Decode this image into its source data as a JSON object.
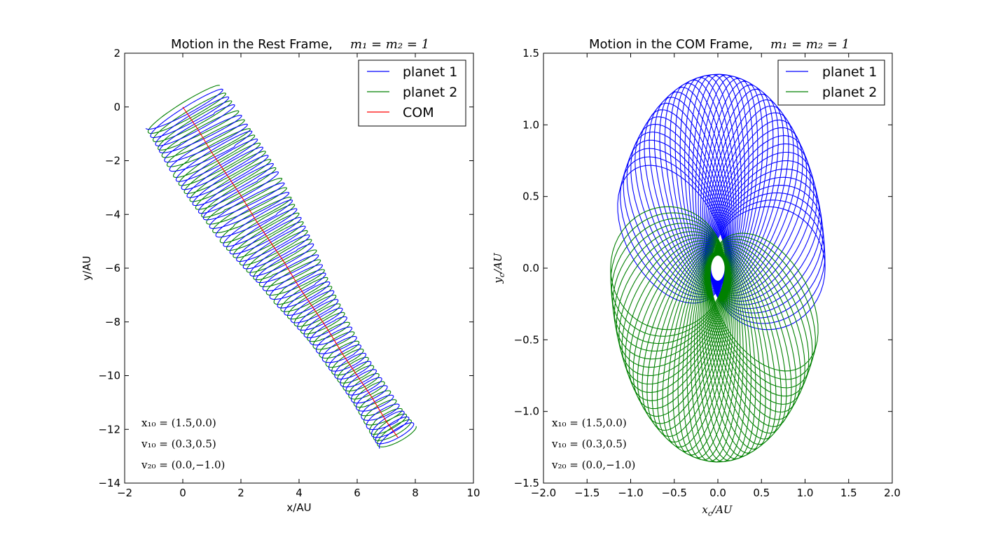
{
  "colors": {
    "planet1": "#0000ff",
    "planet2": "#008000",
    "com": "#ff0000",
    "axes": "#000000",
    "background": "#ffffff"
  },
  "chart_data": [
    {
      "type": "line",
      "title": "Motion in the Rest Frame,",
      "title_math": "m₁ = m₂ = 1",
      "xlabel": "x/AU",
      "ylabel": "y/AU",
      "xlim": [
        -2,
        10
      ],
      "ylim": [
        -14,
        2
      ],
      "xticks": [
        -2,
        0,
        2,
        4,
        6,
        8,
        10
      ],
      "yticks": [
        -14,
        -12,
        -10,
        -8,
        -6,
        -4,
        -2,
        0,
        2
      ],
      "xtick_labels": [
        "−2",
        "0",
        "2",
        "4",
        "6",
        "8",
        "10"
      ],
      "ytick_labels": [
        "−14",
        "−12",
        "−10",
        "−8",
        "−6",
        "−4",
        "−2",
        "0",
        "2"
      ],
      "grid": false,
      "legend_position": "top-right",
      "legend": [
        "planet 1",
        "planet 2",
        "COM"
      ],
      "annotations": [
        "x₁₀ = (1.5,0.0)",
        "v₁₀ = (0.3,0.5)",
        "v₂₀ = (0.0,−1.0)"
      ],
      "series": [
        {
          "name": "COM",
          "x": [
            0.0,
            0.5,
            1.0,
            1.5,
            2.0,
            2.5,
            3.0,
            3.5,
            4.0,
            4.5,
            5.0,
            5.5,
            6.0,
            6.5,
            7.0,
            7.4
          ],
          "y": [
            0.0,
            -0.8,
            -1.7,
            -2.5,
            -3.3,
            -4.2,
            -5.0,
            -5.8,
            -6.7,
            -7.5,
            -8.3,
            -9.2,
            -10.0,
            -10.8,
            -11.7,
            -12.3
          ]
        },
        {
          "name": "planet 1",
          "start": [
            1.5,
            0.0
          ],
          "end": [
            7.5,
            -12.5
          ],
          "loop_count": 40
        },
        {
          "name": "planet 2",
          "start": [
            -1.5,
            0.0
          ],
          "end": [
            8.4,
            -13.3
          ],
          "loop_count": 40
        }
      ]
    },
    {
      "type": "line",
      "title": "Motion in the COM Frame,",
      "title_math": "m₁ = m₂ = 1",
      "xlabel": "x_c / AU",
      "ylabel": "y_c / AU",
      "xlabel_main": "x",
      "xlabel_sub": "c",
      "xlabel_rest": "/AU",
      "ylabel_main": "y",
      "ylabel_sub": "c",
      "ylabel_rest": "/AU",
      "xlim": [
        -2.0,
        2.0
      ],
      "ylim": [
        -1.5,
        1.5
      ],
      "xticks": [
        -2.0,
        -1.5,
        -1.0,
        -0.5,
        0.0,
        0.5,
        1.0,
        1.5,
        2.0
      ],
      "yticks": [
        -1.5,
        -1.0,
        -0.5,
        0.0,
        0.5,
        1.0,
        1.5
      ],
      "xtick_labels": [
        "−2.0",
        "−1.5",
        "−1.0",
        "−0.5",
        "0.0",
        "0.5",
        "1.0",
        "1.5",
        "2.0"
      ],
      "ytick_labels": [
        "−1.5",
        "−1.0",
        "−0.5",
        "0.0",
        "0.5",
        "1.0",
        "1.5"
      ],
      "grid": false,
      "legend_position": "top-right",
      "legend": [
        "planet 1",
        "planet 2"
      ],
      "annotations": [
        "x₁₀ = (1.5,0.0)",
        "v₁₀ = (0.3,0.5)",
        "v₂₀ = (0.0,−1.0)"
      ],
      "series": [
        {
          "name": "planet 1",
          "start": [
            1.5,
            0.0
          ],
          "petal_count": 40,
          "apoapsis": 1.5,
          "periapsis": 0.1
        },
        {
          "name": "planet 2",
          "start": [
            -1.5,
            0.0
          ],
          "petal_count": 40,
          "apoapsis": 1.5,
          "periapsis": 0.1
        }
      ]
    }
  ]
}
